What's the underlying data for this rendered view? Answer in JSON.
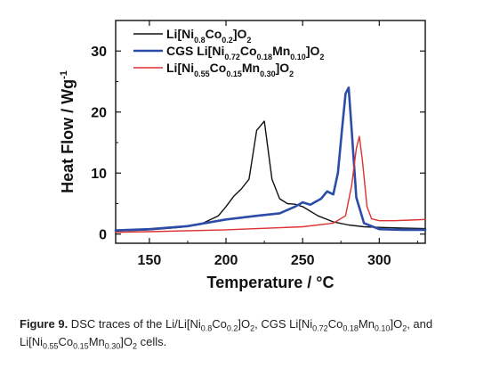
{
  "chart_data": {
    "type": "line",
    "xlabel": "Temperature / °C",
    "ylabel": "Heat Flow / Wg",
    "ylabel_sup": "-1",
    "xlim": [
      128,
      330
    ],
    "ylim": [
      -1.5,
      35
    ],
    "x_ticks": [
      150,
      200,
      250,
      300
    ],
    "y_ticks": [
      0,
      10,
      20,
      30
    ],
    "grid": false,
    "legend_position": "top-left",
    "series": [
      {
        "name": "Li[Ni0.8Co0.2]O2",
        "legend_parts": [
          [
            "Li[Ni",
            false
          ],
          [
            "0.8",
            true
          ],
          [
            "Co",
            false
          ],
          [
            "0.2",
            true
          ],
          [
            "]O",
            false
          ],
          [
            "2",
            true
          ]
        ],
        "legend_prefix": "",
        "color": "#111111",
        "x": [
          128,
          150,
          170,
          185,
          195,
          200,
          205,
          210,
          215,
          220,
          225,
          230,
          235,
          240,
          245,
          250,
          260,
          270,
          280,
          290,
          300,
          315,
          330
        ],
        "y": [
          0.5,
          0.7,
          1.1,
          1.8,
          3.0,
          4.5,
          6.2,
          7.4,
          9.0,
          17.0,
          18.5,
          9.0,
          5.8,
          5.0,
          4.9,
          4.5,
          3.0,
          2.0,
          1.5,
          1.2,
          1.1,
          1.0,
          0.9
        ]
      },
      {
        "name": "CGS Li[Ni0.72Co0.18Mn0.10]O2",
        "legend_parts": [
          [
            "CGS Li[Ni",
            false
          ],
          [
            "0.72",
            true
          ],
          [
            "Co",
            false
          ],
          [
            "0.18",
            true
          ],
          [
            "Mn",
            false
          ],
          [
            "0.10",
            true
          ],
          [
            "]O",
            false
          ],
          [
            "2",
            true
          ]
        ],
        "legend_prefix": "",
        "color": "#2b4da8",
        "x": [
          128,
          150,
          175,
          200,
          220,
          235,
          245,
          250,
          255,
          262,
          266,
          270,
          273,
          276,
          278,
          280,
          282,
          285,
          290,
          300,
          315,
          330
        ],
        "y": [
          0.6,
          0.8,
          1.3,
          2.4,
          3.0,
          3.4,
          4.5,
          5.2,
          4.8,
          5.8,
          7.0,
          6.5,
          10.0,
          18.0,
          23.0,
          24.0,
          17.0,
          6.0,
          1.8,
          0.8,
          0.7,
          0.7
        ],
        "thick": true
      },
      {
        "name": "Li[Ni0.55Co0.15Mn0.30]O2",
        "legend_parts": [
          [
            "Li[Ni",
            false
          ],
          [
            "0.55",
            true
          ],
          [
            "Co",
            false
          ],
          [
            "0.15",
            true
          ],
          [
            "Mn",
            false
          ],
          [
            "0.30",
            true
          ],
          [
            "]O",
            false
          ],
          [
            "2",
            true
          ]
        ],
        "legend_prefix": "",
        "color": "#e03030",
        "x": [
          128,
          150,
          200,
          250,
          270,
          278,
          282,
          285,
          287,
          289,
          292,
          295,
          300,
          310,
          320,
          330
        ],
        "y": [
          0.3,
          0.4,
          0.7,
          1.2,
          1.8,
          3.0,
          8.0,
          14.0,
          16.0,
          12.0,
          4.5,
          2.5,
          2.2,
          2.2,
          2.3,
          2.4
        ]
      }
    ]
  },
  "caption": {
    "label": "Figure 9.",
    "parts": [
      [
        " DSC traces of the Li/Li[Ni",
        false
      ],
      [
        "0.8",
        true
      ],
      [
        "Co",
        false
      ],
      [
        "0.2",
        true
      ],
      [
        "]O",
        false
      ],
      [
        "2",
        true
      ],
      [
        ", CGS Li[Ni",
        false
      ],
      [
        "0.72",
        true
      ],
      [
        "Co",
        false
      ],
      [
        "0.18",
        true
      ],
      [
        "Mn",
        false
      ],
      [
        "0.10",
        true
      ],
      [
        "]O",
        false
      ],
      [
        "2",
        true
      ],
      [
        ", and Li[Ni",
        false
      ],
      [
        "0.55",
        true
      ],
      [
        "Co",
        false
      ],
      [
        "0.15",
        true
      ],
      [
        "Mn",
        false
      ],
      [
        "0.30",
        true
      ],
      [
        "]O",
        false
      ],
      [
        "2",
        true
      ],
      [
        " cells.",
        false
      ]
    ]
  }
}
